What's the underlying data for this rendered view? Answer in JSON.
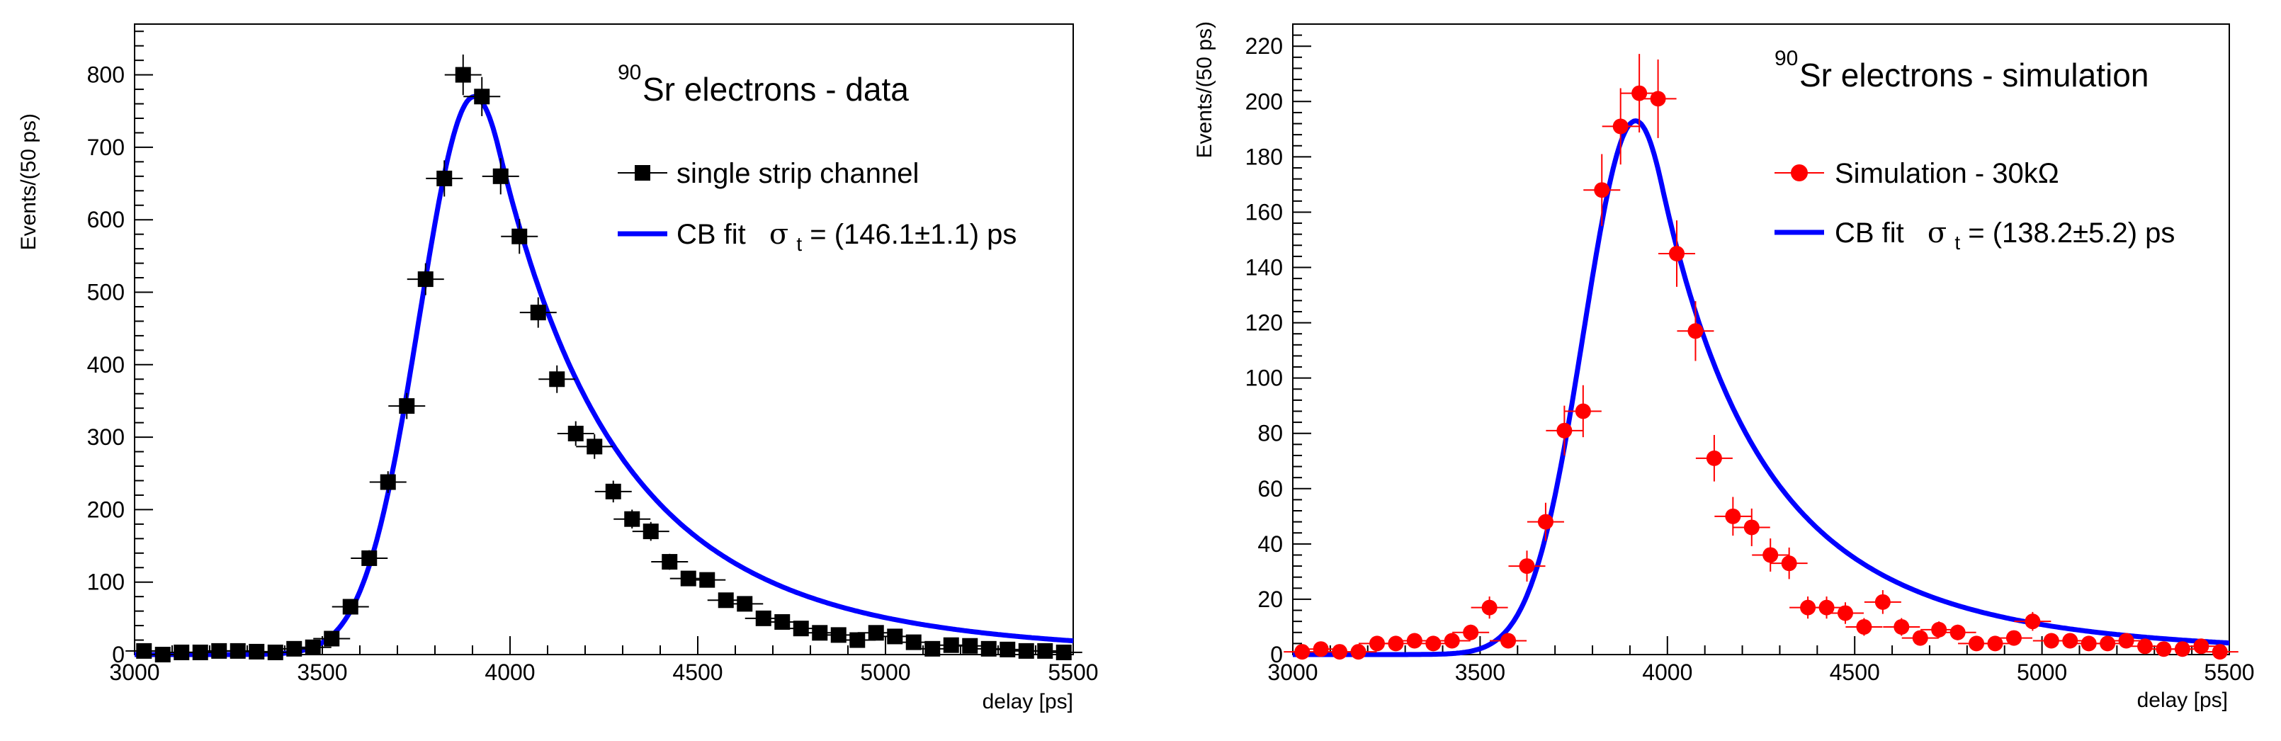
{
  "colors": {
    "data": "#000000",
    "simulation": "#ff0000",
    "fit": "#0000ff",
    "frame": "#000000"
  },
  "chart_data": [
    {
      "type": "scatter",
      "title_sup": "90",
      "title_main": "Sr electrons - data",
      "xlabel": "delay [ps]",
      "ylabel": "Events/(50 ps)",
      "xlim": [
        3000,
        5500
      ],
      "ylim": [
        0,
        870
      ],
      "xticks": [
        3000,
        3500,
        4000,
        4500,
        5000,
        5500
      ],
      "yticks": [
        0,
        100,
        200,
        300,
        400,
        500,
        600,
        700,
        800
      ],
      "legend": {
        "marker_label": "single strip channel",
        "fit_label": "CB fit",
        "fit_sigma_symbol": "σ",
        "fit_sigma_sub": "t",
        "fit_value": " = (146.1±1.1) ps"
      },
      "series": [
        {
          "name": "single strip channel",
          "marker": "square",
          "x": [
            3025,
            3075,
            3125,
            3175,
            3225,
            3275,
            3325,
            3375,
            3425,
            3475,
            3525,
            3575,
            3625,
            3675,
            3725,
            3775,
            3825,
            3875,
            3925,
            3975,
            4025,
            4075,
            4125,
            4175,
            4225,
            4275,
            4325,
            4375,
            4425,
            4475,
            4525,
            4575,
            4625,
            4675,
            4725,
            4775,
            4825,
            4875,
            4925,
            4975,
            5025,
            5075,
            5125,
            5175,
            5225,
            5275,
            5325,
            5375,
            5425,
            5475
          ],
          "y": [
            5,
            0,
            3,
            3,
            5,
            5,
            4,
            3,
            8,
            10,
            22,
            66,
            133,
            238,
            343,
            518,
            657,
            800,
            770,
            660,
            577,
            472,
            380,
            305,
            287,
            225,
            187,
            170,
            128,
            105,
            103,
            75,
            70,
            50,
            45,
            36,
            30,
            27,
            20,
            30,
            25,
            17,
            8,
            13,
            12,
            8,
            7,
            5,
            5,
            3
          ],
          "err": [
            2,
            1,
            2,
            2,
            2,
            2,
            2,
            2,
            3,
            3,
            5,
            8,
            11,
            15,
            18,
            22,
            25,
            28,
            27,
            25,
            24,
            21,
            19,
            17,
            17,
            15,
            13,
            13,
            11,
            10,
            10,
            8,
            8,
            7,
            7,
            6,
            5,
            5,
            4,
            5,
            5,
            4,
            3,
            3,
            3,
            3,
            3,
            2,
            2,
            2
          ]
        }
      ],
      "fit": {
        "name": "CB fit",
        "mu": 3905,
        "sigma": 146.1,
        "amplitude": 770,
        "alpha": 0.45,
        "n": 7
      }
    },
    {
      "type": "scatter",
      "title_sup": "90",
      "title_main": "Sr electrons - simulation",
      "xlabel": "delay [ps]",
      "ylabel": "Events/(50 ps)",
      "xlim": [
        3000,
        5500
      ],
      "ylim": [
        0,
        228
      ],
      "xticks": [
        3000,
        3500,
        4000,
        4500,
        5000,
        5500
      ],
      "yticks": [
        0,
        20,
        40,
        60,
        80,
        100,
        120,
        140,
        160,
        180,
        200,
        220
      ],
      "legend": {
        "marker_label": "Simulation - 30kΩ",
        "fit_label": "CB fit",
        "fit_sigma_symbol": "σ",
        "fit_sigma_sub": "t",
        "fit_value": " = (138.2±5.2) ps"
      },
      "series": [
        {
          "name": "Simulation - 30kΩ",
          "marker": "circle",
          "x": [
            3025,
            3075,
            3125,
            3175,
            3225,
            3275,
            3325,
            3375,
            3425,
            3475,
            3525,
            3575,
            3625,
            3675,
            3725,
            3775,
            3825,
            3875,
            3925,
            3975,
            4025,
            4075,
            4125,
            4175,
            4225,
            4275,
            4325,
            4375,
            4425,
            4475,
            4525,
            4575,
            4625,
            4675,
            4725,
            4775,
            4825,
            4875,
            4925,
            4975,
            5025,
            5075,
            5125,
            5175,
            5225,
            5275,
            5325,
            5375,
            5425,
            5475
          ],
          "y": [
            1,
            2,
            1,
            1,
            4,
            4,
            5,
            4,
            5,
            8,
            17,
            5,
            32,
            48,
            81,
            88,
            168,
            191,
            203,
            201,
            145,
            117,
            71,
            50,
            46,
            36,
            33,
            17,
            17,
            15,
            10,
            19,
            10,
            6,
            9,
            8,
            4,
            4,
            6,
            12,
            5,
            5,
            4,
            4,
            5,
            3,
            2,
            2,
            3,
            1
          ],
          "err": [
            1,
            1.5,
            1,
            1,
            2,
            2,
            2.2,
            2,
            2.2,
            2.8,
            4,
            2.2,
            5.6,
            6.9,
            9,
            9.4,
            13,
            13.8,
            14.2,
            14.2,
            12,
            10.8,
            8.4,
            7,
            6.8,
            6,
            5.7,
            4,
            4,
            3.9,
            3.2,
            4.3,
            3.2,
            2.4,
            3,
            2.8,
            2,
            2,
            2.4,
            3.4,
            2.2,
            2.2,
            2,
            2,
            2.2,
            1.7,
            1.4,
            1.4,
            1.7,
            1
          ]
        }
      ],
      "fit": {
        "name": "CB fit",
        "mu": 3915,
        "sigma": 138.2,
        "amplitude": 193,
        "alpha": 0.5,
        "n": 5
      }
    }
  ]
}
